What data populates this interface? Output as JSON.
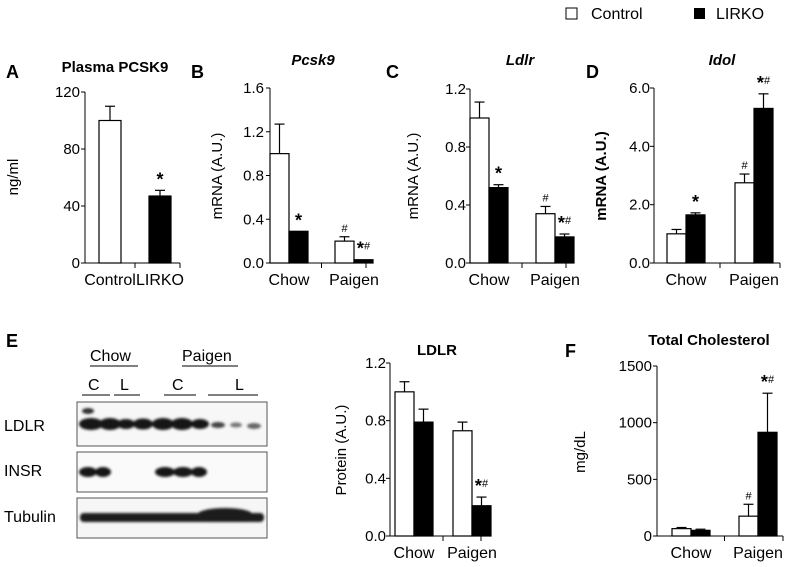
{
  "legend": [
    {
      "label": "Control",
      "color": "#ffffff"
    },
    {
      "label": "LIRKO",
      "color": "#000000"
    }
  ],
  "panel_letters": {
    "A": "A",
    "B": "B",
    "C": "C",
    "D": "D",
    "E": "E",
    "F": "F"
  },
  "chart_data": [
    {
      "id": "A",
      "type": "bar",
      "title": "Plasma PCSK9",
      "ylabel": "ng/ml",
      "ylim": [
        0,
        120
      ],
      "yticks": [
        "0",
        "40",
        "80",
        "120"
      ],
      "categories": [
        "Control",
        "LIRKO"
      ],
      "bars": [
        {
          "value": 100,
          "error": 10,
          "fill": "#ffffff",
          "annotation": ""
        },
        {
          "value": 47,
          "error": 4,
          "fill": "#000000",
          "annotation": "*"
        }
      ]
    },
    {
      "id": "B",
      "type": "bar",
      "title": "Pcsk9",
      "title_italic": true,
      "ylabel": "mRNA (A.U.)",
      "ylim": [
        0,
        1.6
      ],
      "yticks": [
        "0.0",
        "0.4",
        "0.8",
        "1.2",
        "1.6"
      ],
      "categories": [
        "Chow",
        "Paigen"
      ],
      "series": [
        {
          "name": "Control",
          "fill": "#ffffff",
          "values": [
            1.0,
            0.2
          ],
          "errors": [
            0.27,
            0.04
          ],
          "annotations": [
            "",
            "#"
          ]
        },
        {
          "name": "LIRKO",
          "fill": "#000000",
          "values": [
            0.29,
            0.03
          ],
          "errors": [
            0.0,
            0.0
          ],
          "annotations": [
            "*",
            "*#"
          ]
        }
      ]
    },
    {
      "id": "C",
      "type": "bar",
      "title": "Ldlr",
      "title_italic": true,
      "ylabel": "mRNA (A.U.)",
      "ylim": [
        0,
        1.2
      ],
      "yticks": [
        "0.0",
        "0.4",
        "0.8",
        "1.2"
      ],
      "categories": [
        "Chow",
        "Paigen"
      ],
      "series": [
        {
          "name": "Control",
          "fill": "#ffffff",
          "values": [
            1.0,
            0.34
          ],
          "errors": [
            0.11,
            0.05
          ],
          "annotations": [
            "",
            "#"
          ]
        },
        {
          "name": "LIRKO",
          "fill": "#000000",
          "values": [
            0.52,
            0.18
          ],
          "errors": [
            0.02,
            0.02
          ],
          "annotations": [
            "*",
            "*#"
          ]
        }
      ]
    },
    {
      "id": "D",
      "type": "bar",
      "title": "Idol",
      "title_italic": true,
      "ylabel": "mRNA (A.U.)",
      "ylabel_bold": true,
      "ylim": [
        0,
        6
      ],
      "yticks": [
        "0.0",
        "2.0",
        "4.0",
        "6.0"
      ],
      "categories": [
        "Chow",
        "Paigen"
      ],
      "series": [
        {
          "name": "Control",
          "fill": "#ffffff",
          "values": [
            1.0,
            2.75
          ],
          "errors": [
            0.15,
            0.3
          ],
          "annotations": [
            "",
            "#"
          ]
        },
        {
          "name": "LIRKO",
          "fill": "#000000",
          "values": [
            1.65,
            5.3
          ],
          "errors": [
            0.07,
            0.5
          ],
          "annotations": [
            "*",
            "*#"
          ]
        }
      ]
    },
    {
      "id": "E_quant",
      "type": "bar",
      "title": "LDLR",
      "ylabel": "Protein (A.U.)",
      "ylim": [
        0,
        1.2
      ],
      "yticks": [
        "0.0",
        "0.4",
        "0.8",
        "1.2"
      ],
      "categories": [
        "Chow",
        "Paigen"
      ],
      "series": [
        {
          "name": "Control",
          "fill": "#ffffff",
          "values": [
            1.0,
            0.73
          ],
          "errors": [
            0.07,
            0.06
          ],
          "annotations": [
            "",
            ""
          ]
        },
        {
          "name": "LIRKO",
          "fill": "#000000",
          "values": [
            0.79,
            0.21
          ],
          "errors": [
            0.09,
            0.06
          ],
          "annotations": [
            "",
            "*#"
          ]
        }
      ]
    },
    {
      "id": "F",
      "type": "bar",
      "title": "Total Cholesterol",
      "ylabel": "mg/dL",
      "ylim": [
        0,
        1500
      ],
      "yticks": [
        "0",
        "500",
        "1000",
        "1500"
      ],
      "categories": [
        "Chow",
        "Paigen"
      ],
      "series": [
        {
          "name": "Control",
          "fill": "#ffffff",
          "values": [
            65,
            175
          ],
          "errors": [
            10,
            105
          ],
          "annotations": [
            "",
            "#"
          ]
        },
        {
          "name": "LIRKO",
          "fill": "#000000",
          "values": [
            50,
            915
          ],
          "errors": [
            10,
            345
          ],
          "annotations": [
            "",
            "*#"
          ]
        }
      ]
    }
  ],
  "blot": {
    "groups": [
      "Chow",
      "Paigen"
    ],
    "lanes": [
      "C",
      "L",
      "C",
      "L"
    ],
    "rows": [
      "LDLR",
      "INSR",
      "Tubulin"
    ]
  }
}
